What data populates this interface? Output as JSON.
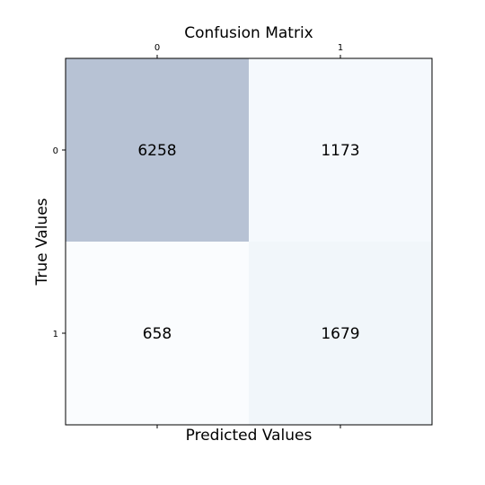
{
  "chart_data": {
    "type": "heatmap",
    "title": "Confusion Matrix",
    "xlabel": "Predicted Values",
    "ylabel": "True Values",
    "x_categories": [
      "0",
      "1"
    ],
    "y_categories": [
      "0",
      "1"
    ],
    "values": [
      [
        6258,
        1173
      ],
      [
        658,
        1679
      ]
    ],
    "colormap": "Blues",
    "colors": {
      "cells": [
        [
          "#b7c2d4",
          "#f5f9fd"
        ],
        [
          "#fafcfe",
          "#f1f6fa"
        ]
      ],
      "frame": "#000000"
    },
    "grid": false
  }
}
